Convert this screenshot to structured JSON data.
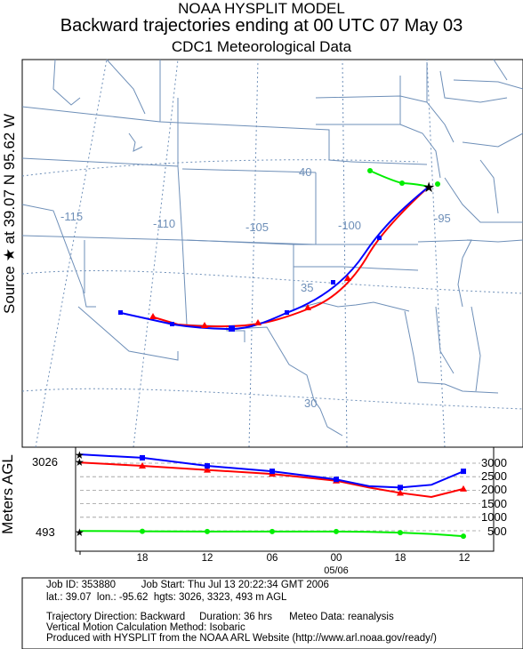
{
  "header": {
    "line1": "NOAA HYSPLIT MODEL",
    "line2": "Backward trajectories ending at 00 UTC 07 May 03",
    "line3": "CDC1 Meteorological Data"
  },
  "source_label": "Source ★ at   39.07 N   95.62 W",
  "map": {
    "lon_labels": [
      "-115",
      "-110",
      "-105",
      "-100",
      "-95"
    ],
    "lat_labels": [
      "40",
      "35",
      "30"
    ],
    "colors": {
      "border": "#6e8fb8",
      "grid": "#6e8fb8",
      "red": "#ff0000",
      "blue": "#0000ff",
      "green": "#00ee00"
    }
  },
  "height_panel": {
    "axis_title": "Meters AGL",
    "left_labels": [
      "3026",
      "493"
    ],
    "right_labels": [
      "3000",
      "2500",
      "2000",
      "1500",
      "1000",
      "500"
    ],
    "time_ticks": [
      "18",
      "12",
      "06",
      "00",
      "18",
      "12"
    ],
    "date_label": "05/06"
  },
  "chart_data": {
    "type": "line",
    "series": [
      {
        "color": "red",
        "start_height_m": 3026,
        "heights_m": [
          3026,
          2900,
          2750,
          2600,
          2350,
          2100,
          1900,
          1750,
          2050
        ]
      },
      {
        "color": "blue",
        "start_height_m": 3323,
        "heights_m": [
          3323,
          3200,
          2900,
          2700,
          2400,
          2150,
          2100,
          2200,
          2700
        ]
      },
      {
        "color": "green",
        "start_height_m": 493,
        "heights_m": [
          493,
          480,
          470,
          470,
          470,
          460,
          430,
          380,
          300
        ]
      }
    ],
    "x_ticks": [
      "18",
      "12",
      "06",
      "00",
      "18",
      "12"
    ],
    "y_ticks": [
      500,
      1000,
      1500,
      2000,
      2500,
      3000
    ]
  },
  "footer": {
    "job": "Job ID: 353880         Job Start: Thu Jul 13 20:22:34 GMT 2006",
    "source": "lat.: 39.07  lon.: -95.62  hgts: 3026, 3323, 493 m AGL",
    "direction": "Trajectory Direction: Backward     Duration: 36 hrs      Meteo Data: reanalysis",
    "vertical": "Vertical Motion Calculation Method: Isobaric",
    "produced": "Produced with HYSPLIT from the NOAA ARL Website (http://www.arl.noaa.gov/ready/)"
  }
}
